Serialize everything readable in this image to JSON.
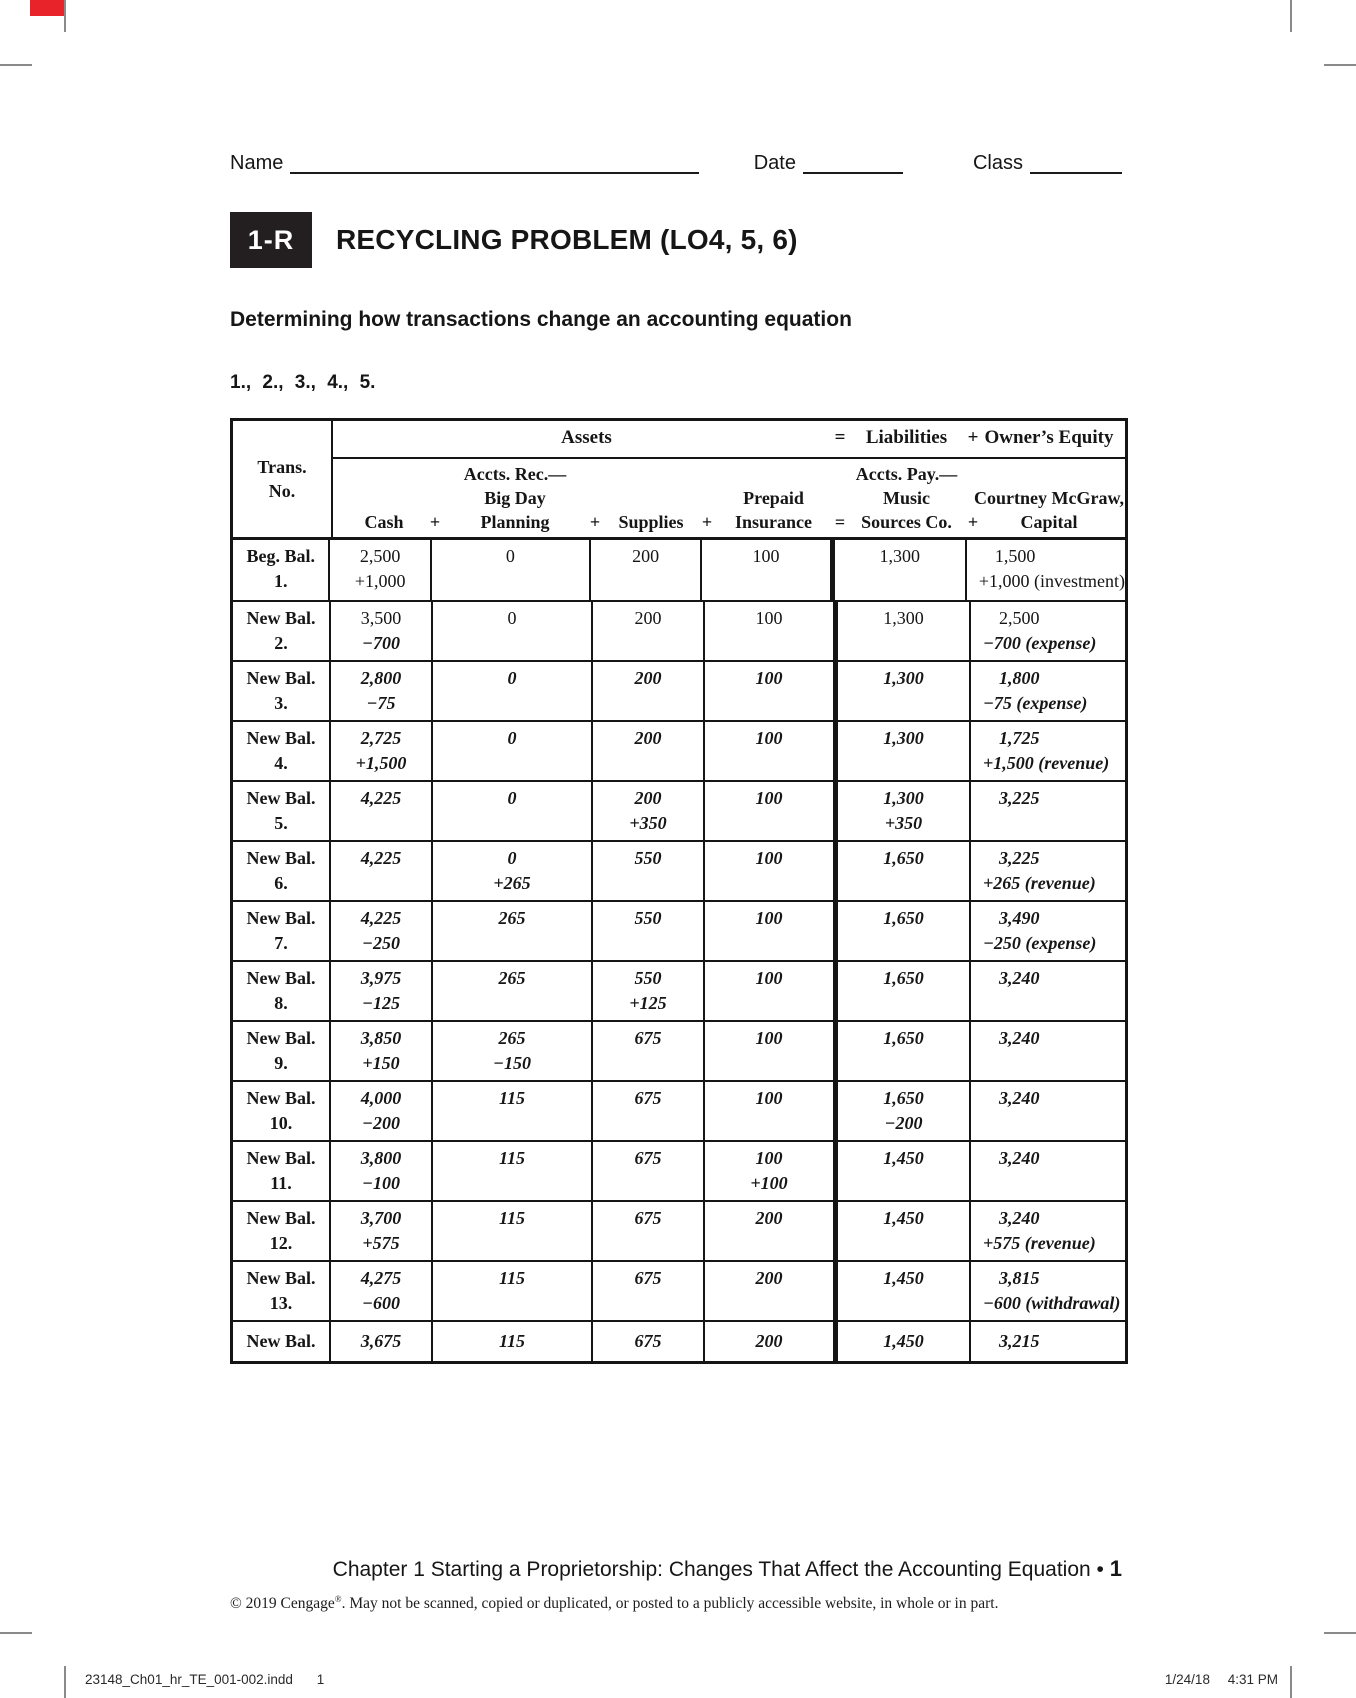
{
  "page": {
    "accent_red": "#e8232a"
  },
  "header": {
    "name_label": "Name",
    "date_label": "Date",
    "class_label": "Class"
  },
  "masthead": {
    "code": "1-R",
    "title": "RECYCLING PROBLEM (LO4, 5, 6)",
    "subtitle": "Determining how transactions change an accounting equation",
    "steps": "1., 2., 3., 4., 5."
  },
  "table": {
    "group": {
      "assets_label": "Assets",
      "equals": "=",
      "liabilities_label": "Liabilities",
      "plus": "+",
      "owners_equity_label": "Owner’s Equity"
    },
    "trans_header": [
      "Trans.",
      "No."
    ],
    "columns": [
      {
        "name": "cash",
        "lines": [
          "Cash"
        ]
      },
      {
        "name": "accounts-receivable",
        "lines": [
          "Accts. Rec.—",
          "Big Day",
          "Planning"
        ]
      },
      {
        "name": "supplies",
        "lines": [
          "Supplies"
        ]
      },
      {
        "name": "prepaid-insurance",
        "lines": [
          "Prepaid",
          "Insurance"
        ]
      },
      {
        "name": "accounts-payable",
        "lines": [
          "Accts. Pay.—",
          "Music",
          "Sources Co."
        ]
      },
      {
        "name": "owners-equity",
        "lines": [
          "Courtney McGraw,",
          "Capital"
        ]
      }
    ],
    "operators": [
      "+",
      "+",
      "+",
      "=",
      "+"
    ],
    "rows": [
      {
        "label": [
          "Beg. Bal.",
          "1."
        ],
        "italic": "none",
        "cells": [
          [
            "2,500",
            "+1,000"
          ],
          [
            "0",
            ""
          ],
          [
            "200",
            ""
          ],
          [
            "100",
            ""
          ],
          [
            "1,300",
            ""
          ],
          [
            "1,500",
            "+1,000 (investment)"
          ]
        ]
      },
      {
        "label": [
          "New Bal.",
          "2."
        ],
        "italic": "changes",
        "cells": [
          [
            "3,500",
            "−700"
          ],
          [
            "0",
            ""
          ],
          [
            "200",
            ""
          ],
          [
            "100",
            ""
          ],
          [
            "1,300",
            ""
          ],
          [
            "2,500",
            "−700 (expense)"
          ]
        ]
      },
      {
        "label": [
          "New Bal.",
          "3."
        ],
        "italic": "all",
        "cells": [
          [
            "2,800",
            "−75"
          ],
          [
            "0",
            ""
          ],
          [
            "200",
            ""
          ],
          [
            "100",
            ""
          ],
          [
            "1,300",
            ""
          ],
          [
            "1,800",
            "−75 (expense)"
          ]
        ]
      },
      {
        "label": [
          "New Bal.",
          "4."
        ],
        "italic": "all",
        "cells": [
          [
            "2,725",
            "+1,500"
          ],
          [
            "0",
            ""
          ],
          [
            "200",
            ""
          ],
          [
            "100",
            ""
          ],
          [
            "1,300",
            ""
          ],
          [
            "1,725",
            "+1,500 (revenue)"
          ]
        ]
      },
      {
        "label": [
          "New Bal.",
          "5."
        ],
        "italic": "all",
        "cells": [
          [
            "4,225",
            ""
          ],
          [
            "0",
            ""
          ],
          [
            "200",
            "+350"
          ],
          [
            "100",
            ""
          ],
          [
            "1,300",
            "+350"
          ],
          [
            "3,225",
            ""
          ]
        ]
      },
      {
        "label": [
          "New Bal.",
          "6."
        ],
        "italic": "all",
        "cells": [
          [
            "4,225",
            ""
          ],
          [
            "0",
            "+265"
          ],
          [
            "550",
            ""
          ],
          [
            "100",
            ""
          ],
          [
            "1,650",
            ""
          ],
          [
            "3,225",
            "+265 (revenue)"
          ]
        ]
      },
      {
        "label": [
          "New Bal.",
          "7."
        ],
        "italic": "all",
        "cells": [
          [
            "4,225",
            "−250"
          ],
          [
            "265",
            ""
          ],
          [
            "550",
            ""
          ],
          [
            "100",
            ""
          ],
          [
            "1,650",
            ""
          ],
          [
            "3,490",
            "−250 (expense)"
          ]
        ]
      },
      {
        "label": [
          "New Bal.",
          "8."
        ],
        "italic": "all",
        "cells": [
          [
            "3,975",
            "−125"
          ],
          [
            "265",
            ""
          ],
          [
            "550",
            "+125"
          ],
          [
            "100",
            ""
          ],
          [
            "1,650",
            ""
          ],
          [
            "3,240",
            ""
          ]
        ]
      },
      {
        "label": [
          "New Bal.",
          "9."
        ],
        "italic": "all",
        "cells": [
          [
            "3,850",
            "+150"
          ],
          [
            "265",
            "−150"
          ],
          [
            "675",
            ""
          ],
          [
            "100",
            ""
          ],
          [
            "1,650",
            ""
          ],
          [
            "3,240",
            ""
          ]
        ]
      },
      {
        "label": [
          "New Bal.",
          "10."
        ],
        "italic": "all",
        "cells": [
          [
            "4,000",
            "−200"
          ],
          [
            "115",
            ""
          ],
          [
            "675",
            ""
          ],
          [
            "100",
            ""
          ],
          [
            "1,650",
            "−200"
          ],
          [
            "3,240",
            ""
          ]
        ]
      },
      {
        "label": [
          "New Bal.",
          "11."
        ],
        "italic": "all",
        "cells": [
          [
            "3,800",
            "−100"
          ],
          [
            "115",
            ""
          ],
          [
            "675",
            ""
          ],
          [
            "100",
            "+100"
          ],
          [
            "1,450",
            ""
          ],
          [
            "3,240",
            ""
          ]
        ]
      },
      {
        "label": [
          "New Bal.",
          "12."
        ],
        "italic": "all",
        "cells": [
          [
            "3,700",
            "+575"
          ],
          [
            "115",
            ""
          ],
          [
            "675",
            ""
          ],
          [
            "200",
            ""
          ],
          [
            "1,450",
            ""
          ],
          [
            "3,240",
            "+575 (revenue)"
          ]
        ]
      },
      {
        "label": [
          "New Bal.",
          "13."
        ],
        "italic": "all",
        "cells": [
          [
            "4,275",
            "−600"
          ],
          [
            "115",
            ""
          ],
          [
            "675",
            ""
          ],
          [
            "200",
            ""
          ],
          [
            "1,450",
            ""
          ],
          [
            "3,815",
            "−600 (withdrawal)"
          ]
        ]
      },
      {
        "label": [
          "New Bal.",
          ""
        ],
        "italic": "all",
        "last": true,
        "cells": [
          [
            "3,675",
            ""
          ],
          [
            "115",
            ""
          ],
          [
            "675",
            ""
          ],
          [
            "200",
            ""
          ],
          [
            "1,450",
            ""
          ],
          [
            "3,215",
            ""
          ]
        ]
      }
    ]
  },
  "footer": {
    "chapter_text": "Chapter 1 Starting a Proprietorship: Changes That Affect the Accounting Equation",
    "bullet": "•",
    "page": "1",
    "copyright_pre": "© 2019 Cengage",
    "copyright_sup": "®",
    "copyright_rest": ". May not be scanned, copied or duplicated, or posted to a publicly accessible website, in whole or in part."
  },
  "imprint": {
    "file": "23148_Ch01_hr_TE_001-002.indd",
    "file_page": "1",
    "date": "1/24/18",
    "time": "4:31 PM"
  }
}
